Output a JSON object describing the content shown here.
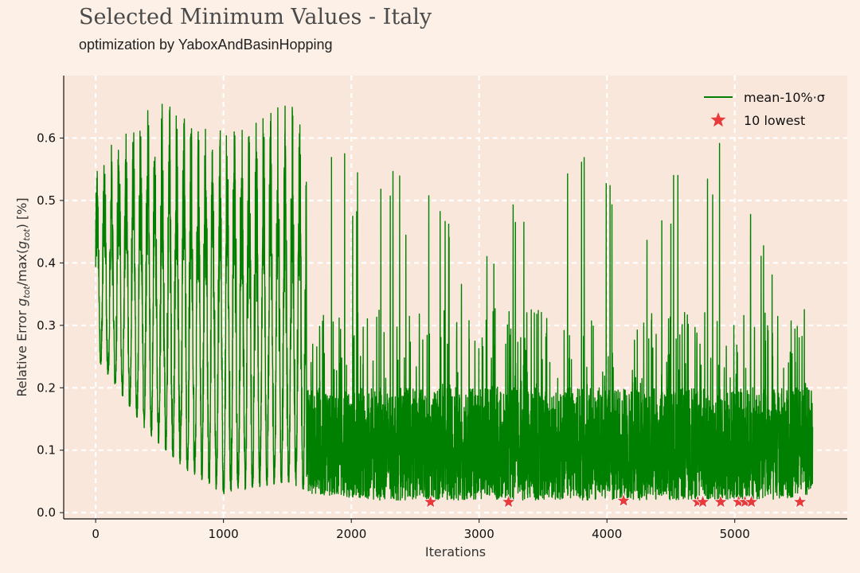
{
  "title": "Selected Minimum Values - Italy",
  "subtitle": "optimization by YaboxAndBasinHopping",
  "chart_data": {
    "type": "line",
    "xlabel": "Iterations",
    "ylabel": "Relative Error g_tot/max(g_tot) [%]",
    "ylabel_parts": [
      "Relative Error ",
      "g",
      "tot",
      "/max(",
      "g",
      "tot",
      ") [%]"
    ],
    "xlim": [
      -250,
      5880
    ],
    "ylim": [
      -0.01,
      0.7
    ],
    "x_ticks": [
      0,
      1000,
      2000,
      3000,
      4000,
      5000
    ],
    "x_tick_labels": [
      "0",
      "1000",
      "2000",
      "3000",
      "4000",
      "5000"
    ],
    "y_ticks": [
      0.0,
      0.1,
      0.2,
      0.3,
      0.4,
      0.5,
      0.6
    ],
    "y_tick_labels": [
      "0.0",
      "0.1",
      "0.2",
      "0.3",
      "0.4",
      "0.5",
      "0.6"
    ],
    "grid": true,
    "legend_position": "top-right",
    "legend": [
      "mean-10%·σ",
      "10 lowest"
    ],
    "series": [
      {
        "name": "mean-10%·σ",
        "color": "#008000",
        "n_points": 5610,
        "envelope": [
          {
            "x": 0,
            "min": 0.25,
            "max": 0.56
          },
          {
            "x": 400,
            "min": 0.13,
            "max": 0.66
          },
          {
            "x": 700,
            "min": 0.07,
            "max": 0.66
          },
          {
            "x": 1000,
            "min": 0.03,
            "max": 0.65
          },
          {
            "x": 1500,
            "min": 0.05,
            "max": 0.66
          },
          {
            "x": 1700,
            "min": 0.03,
            "max": 0.62
          },
          {
            "x": 2200,
            "min": 0.02,
            "max": 0.56
          },
          {
            "x": 2600,
            "min": 0.02,
            "max": 0.52
          },
          {
            "x": 3000,
            "min": 0.02,
            "max": 0.42
          },
          {
            "x": 3600,
            "min": 0.02,
            "max": 0.66
          },
          {
            "x": 4100,
            "min": 0.02,
            "max": 0.54
          },
          {
            "x": 4700,
            "min": 0.02,
            "max": 0.55
          },
          {
            "x": 4900,
            "min": 0.02,
            "max": 0.62
          },
          {
            "x": 5300,
            "min": 0.02,
            "max": 0.39
          },
          {
            "x": 5610,
            "min": 0.03,
            "max": 0.18
          }
        ]
      },
      {
        "name": "10 lowest",
        "color": "#e83a3a",
        "marker": "star",
        "x": [
          2620,
          3230,
          4130,
          4710,
          4750,
          4890,
          5030,
          5080,
          5130,
          5510
        ],
        "y": [
          0.017,
          0.017,
          0.019,
          0.017,
          0.017,
          0.017,
          0.017,
          0.017,
          0.017,
          0.017
        ]
      }
    ]
  }
}
